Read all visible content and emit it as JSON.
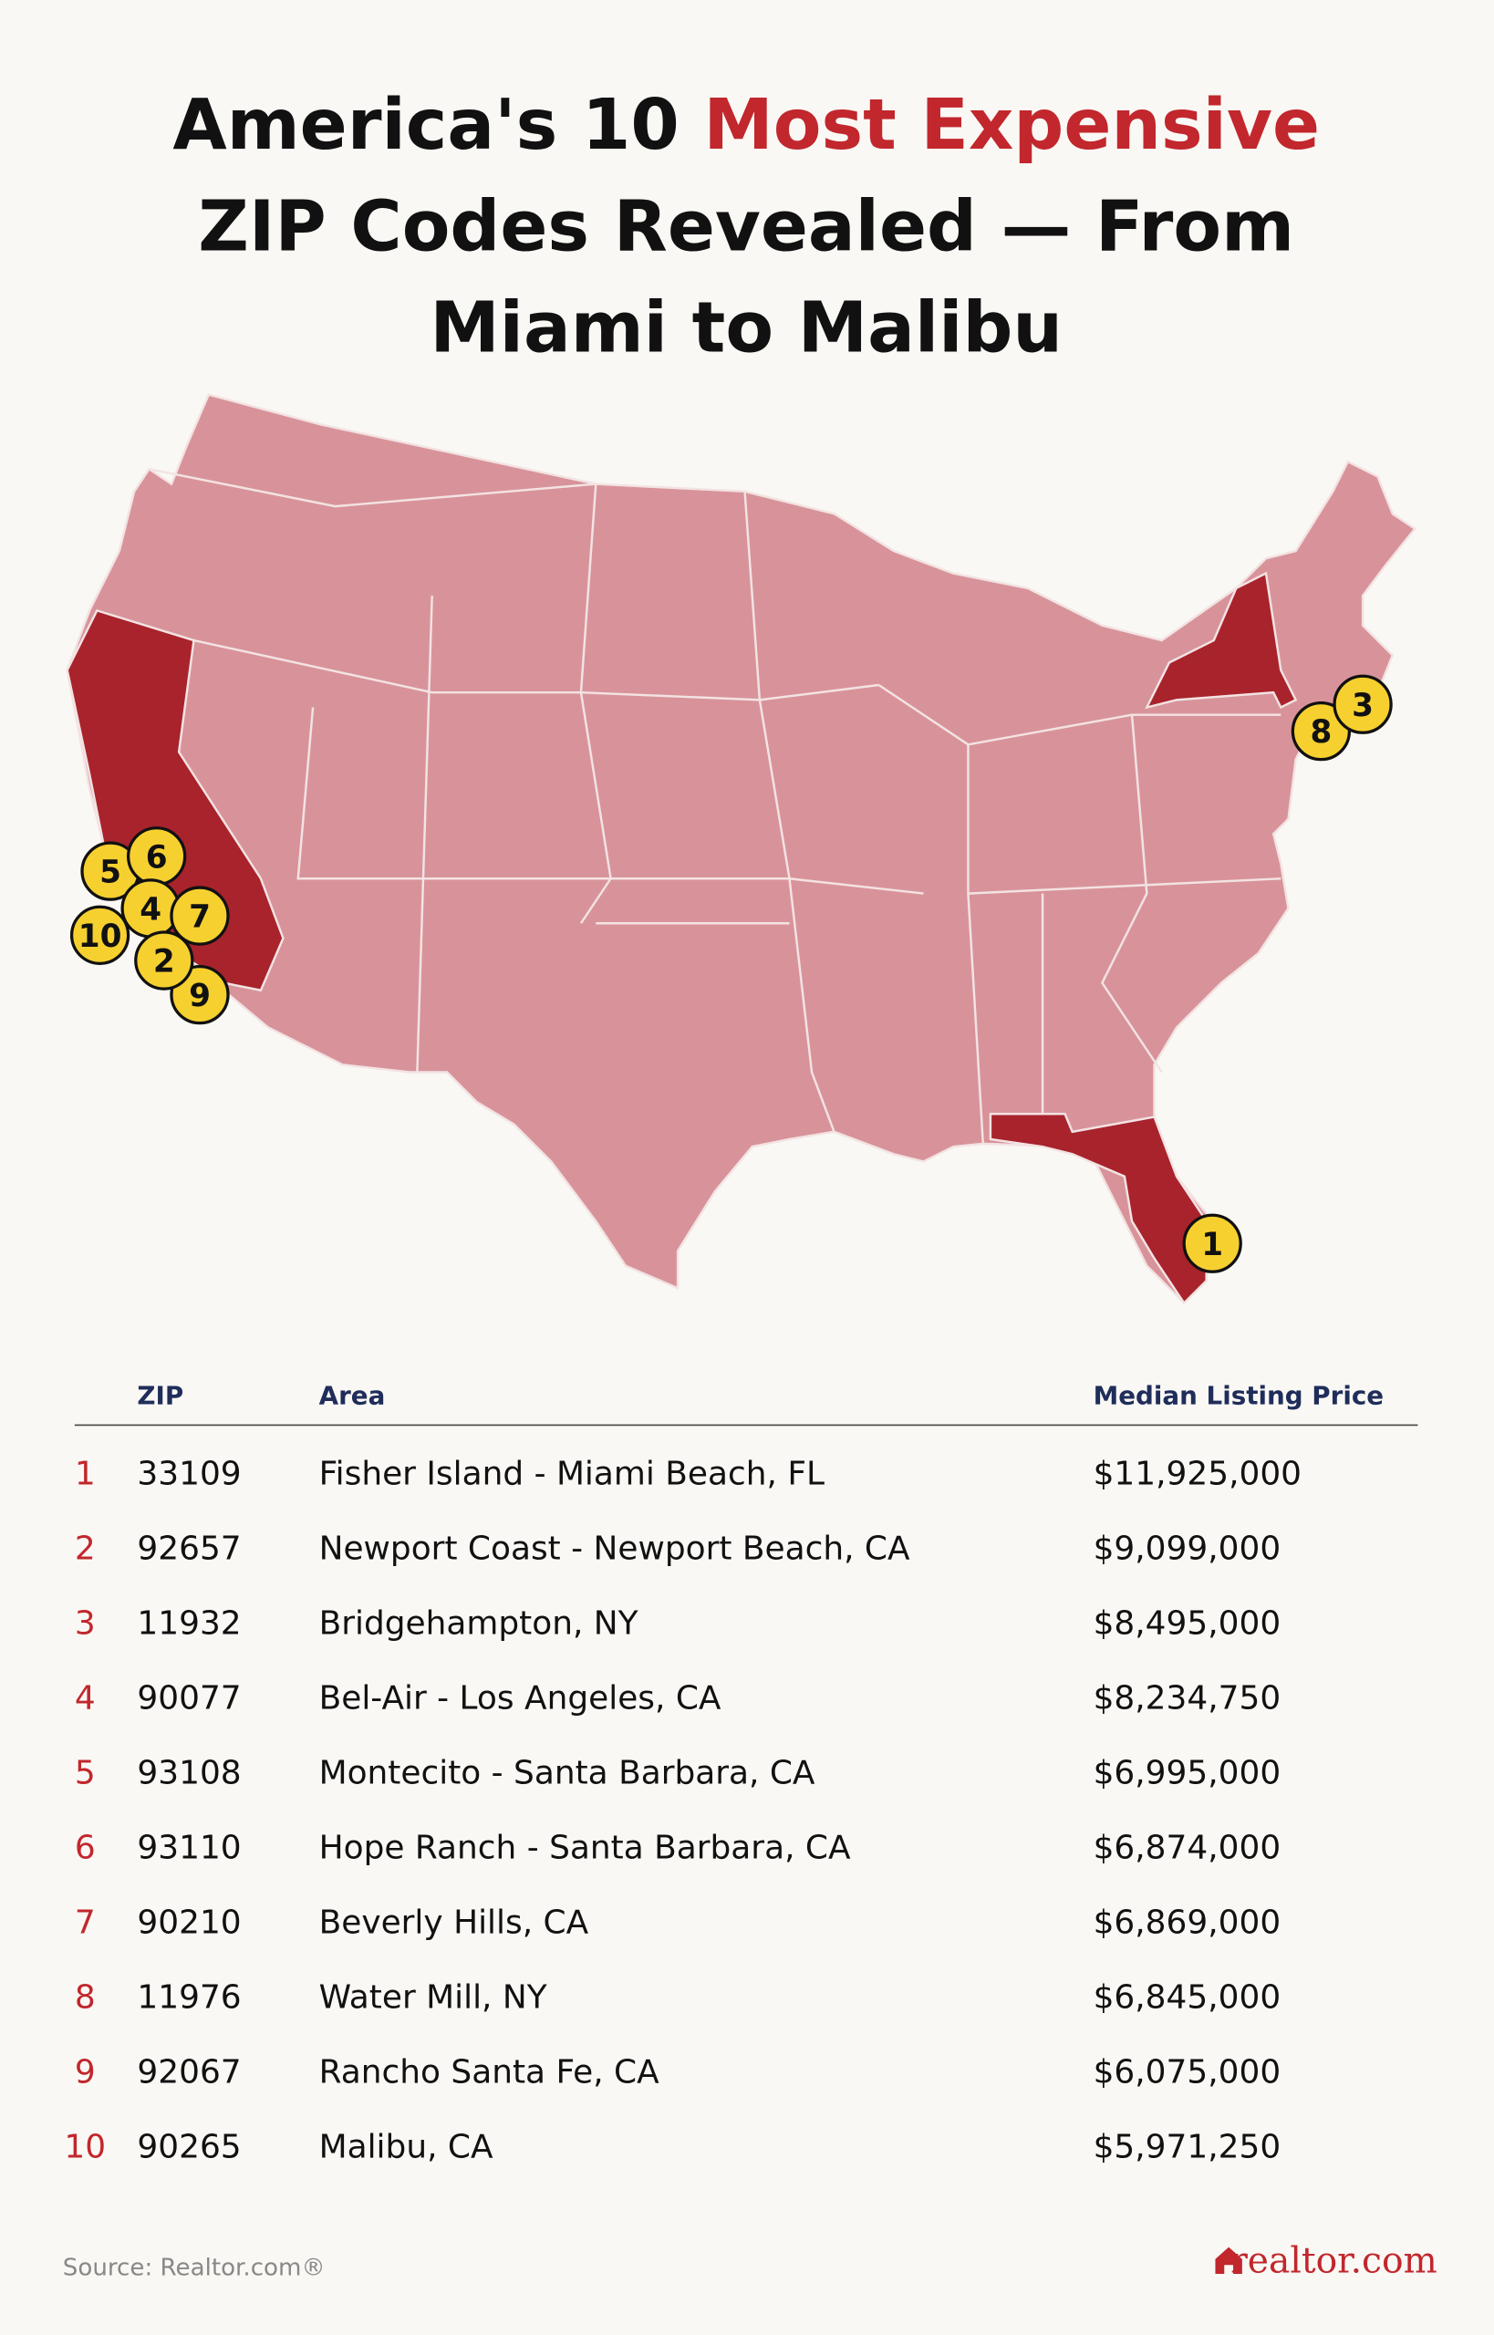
{
  "title": {
    "line1_start": "America's 10 ",
    "line1_highlight": "Most Expensive",
    "line2": "ZIP Codes Revealed — From",
    "line3": "Miami to Malibu"
  },
  "table": {
    "columns": [
      "ZIP",
      "Area",
      "Median Listing Price"
    ],
    "rows": [
      {
        "rank": 1,
        "zip": "33109",
        "area": "Fisher Island - Miami Beach, FL",
        "price": "$11,925,000"
      },
      {
        "rank": 2,
        "zip": "92657",
        "area": "Newport Coast - Newport Beach, CA",
        "price": "$9,099,000"
      },
      {
        "rank": 3,
        "zip": "11932",
        "area": "Bridgehampton, NY",
        "price": "$8,495,000"
      },
      {
        "rank": 4,
        "zip": "90077",
        "area": "Bel-Air - Los Angeles, CA",
        "price": "$8,234,750"
      },
      {
        "rank": 5,
        "zip": "93108",
        "area": "Montecito - Santa Barbara, CA",
        "price": "$6,995,000"
      },
      {
        "rank": 6,
        "zip": "93110",
        "area": "Hope Ranch - Santa Barbara, CA",
        "price": "$6,874,000"
      },
      {
        "rank": 7,
        "zip": "90210",
        "area": "Beverly Hills, CA",
        "price": "$6,869,000"
      },
      {
        "rank": 8,
        "zip": "11976",
        "area": "Water Mill, NY",
        "price": "$6,845,000"
      },
      {
        "rank": 9,
        "zip": "92067",
        "area": "Rancho Santa Fe, CA",
        "price": "$6,075,000"
      },
      {
        "rank": 10,
        "zip": "90265",
        "area": "Malibu, CA",
        "price": "$5,971,250"
      }
    ]
  },
  "footer": {
    "source": "Source: Realtor.com®",
    "logo": "realtor.com"
  }
}
